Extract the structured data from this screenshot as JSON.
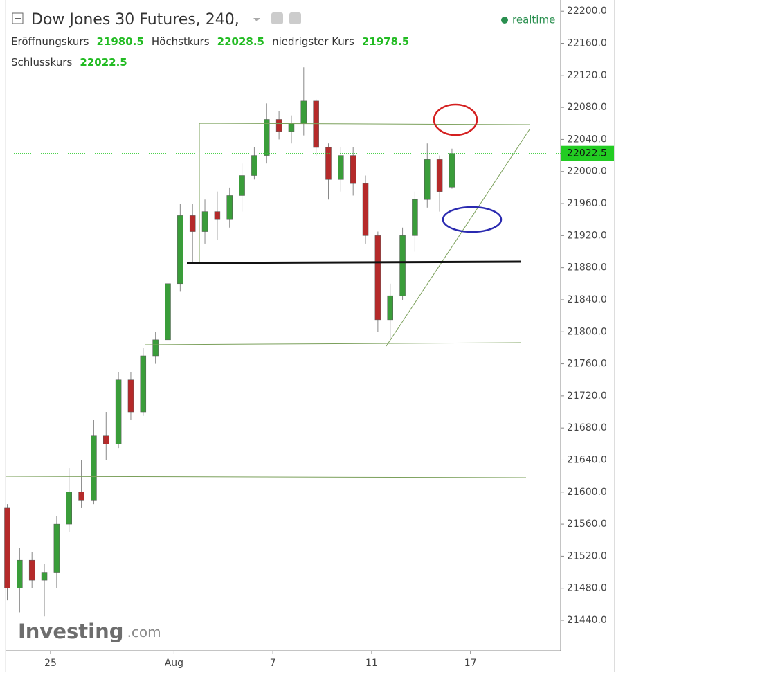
{
  "chart_data": {
    "type": "candlestick",
    "title": "Dow Jones 30 Futures, 240,",
    "status": "realtime",
    "legend_labels": {
      "open": "Eröffnungskurs",
      "high": "Höchstkurs",
      "low": "niedrigster Kurs",
      "close": "Schlusskurs"
    },
    "logo": {
      "main": "Investing",
      "suffix": ".com"
    },
    "x": [
      -1.75,
      -1.25,
      -0.75,
      -0.25,
      0.25,
      0.75,
      1.25,
      1.75,
      2.25,
      2.75,
      3.25,
      3.75,
      4.25,
      4.75,
      5.25,
      5.75,
      6.25,
      6.75,
      7.25,
      7.75,
      8.25,
      8.75,
      9.25,
      9.75,
      10.25,
      10.75,
      11.25,
      11.75,
      12.25,
      12.75,
      13.25,
      13.75,
      14.25,
      14.75,
      15.25,
      15.75,
      16.25
    ],
    "open": [
      21580,
      21480,
      21515,
      21490,
      21500,
      21560,
      21600,
      21590,
      21670,
      21660,
      21740,
      21700,
      21770,
      21790,
      21860,
      21945,
      21925,
      21950,
      21940,
      21970,
      21995,
      22020,
      22065,
      22050,
      22060,
      22088,
      22030,
      21990,
      22020,
      21985,
      21920,
      21815,
      21845,
      21920,
      21965,
      22015,
      21980.5
    ],
    "high": [
      21585,
      21530,
      21525,
      21510,
      21570,
      21630,
      21640,
      21690,
      21700,
      21750,
      21750,
      21780,
      21800,
      21870,
      21960,
      21960,
      21965,
      21975,
      21980,
      22010,
      22030,
      22085,
      22075,
      22070,
      22130,
      22090,
      22035,
      22030,
      22030,
      21995,
      21925,
      21860,
      21930,
      21975,
      22035,
      22020,
      22028.5
    ],
    "low": [
      21465,
      21450,
      21480,
      21445,
      21480,
      21550,
      21580,
      21585,
      21640,
      21655,
      21690,
      21695,
      21760,
      21785,
      21850,
      21885,
      21910,
      21915,
      21930,
      21950,
      21990,
      22010,
      22040,
      22035,
      22045,
      22020,
      21965,
      21975,
      21970,
      21910,
      21800,
      21790,
      21840,
      21900,
      21955,
      21950,
      21978.5
    ],
    "close": [
      21480,
      21515,
      21490,
      21500,
      21560,
      21600,
      21590,
      21670,
      21660,
      21740,
      21700,
      21770,
      21790,
      21860,
      21945,
      21925,
      21950,
      21940,
      21970,
      21995,
      22020,
      22065,
      22050,
      22060,
      22088,
      22030,
      21990,
      22020,
      21985,
      21920,
      21815,
      21845,
      21920,
      21965,
      22015,
      21975,
      22022.5
    ],
    "up_color": "#3a9d3a",
    "down_color": "#b52a2a",
    "xlim": [
      -1.82,
      20.65
    ],
    "xticks": [
      {
        "value": 0,
        "label": "25"
      },
      {
        "value": 5,
        "label": "Aug"
      },
      {
        "value": 9,
        "label": "7"
      },
      {
        "value": 13,
        "label": "11"
      },
      {
        "value": 17,
        "label": "17"
      }
    ],
    "ylim": [
      21402,
      22214
    ],
    "yticks": [
      {
        "value": 21440,
        "label": "21440.0"
      },
      {
        "value": 21480,
        "label": "21480.0"
      },
      {
        "value": 21520,
        "label": "21520.0"
      },
      {
        "value": 21560,
        "label": "21560.0"
      },
      {
        "value": 21600,
        "label": "21600.0"
      },
      {
        "value": 21640,
        "label": "21640.0"
      },
      {
        "value": 21680,
        "label": "21680.0"
      },
      {
        "value": 21720,
        "label": "21720.0"
      },
      {
        "value": 21760,
        "label": "21760.0"
      },
      {
        "value": 21800,
        "label": "21800.0"
      },
      {
        "value": 21840,
        "label": "21840.0"
      },
      {
        "value": 21880,
        "label": "21880.0"
      },
      {
        "value": 21920,
        "label": "21920.0"
      },
      {
        "value": 21960,
        "label": "21960.0"
      },
      {
        "value": 22000,
        "label": "22000.0"
      },
      {
        "value": 22040,
        "label": "22040.0"
      },
      {
        "value": 22080,
        "label": "22080.0"
      },
      {
        "value": 22120,
        "label": "22120.0"
      },
      {
        "value": 22160,
        "label": "22160.0"
      },
      {
        "value": 22200,
        "label": "22200.0"
      }
    ],
    "grid": false
  }
}
